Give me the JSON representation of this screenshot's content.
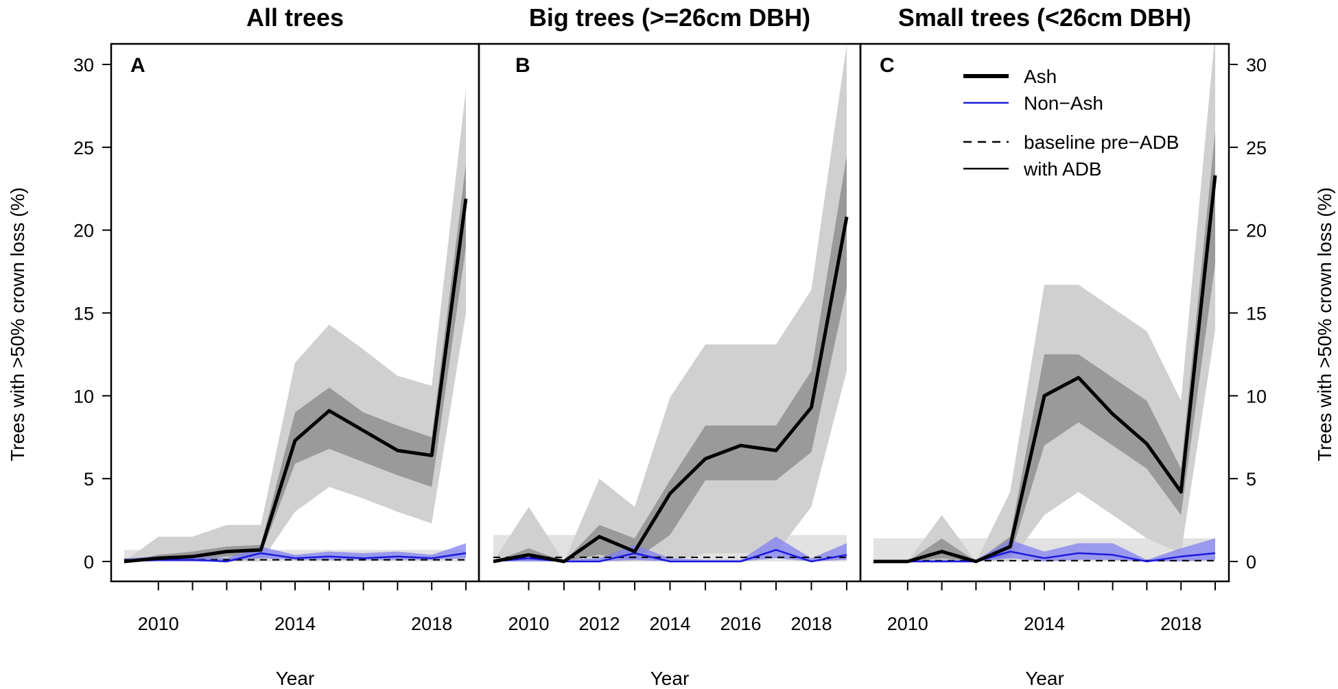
{
  "figure": {
    "xlabel": "Year",
    "ylabel": "Trees with >50% crown loss (%)",
    "colors": {
      "ash": "#000000",
      "nonash": "#1a1adc",
      "ci_outer": "#d0d0d0",
      "ci_inner": "#9a9a9a",
      "baseline_band": "#e2e2e2",
      "nonash_band": "#8080f0"
    }
  },
  "legend": {
    "ash": "Ash",
    "nonash": "Non−Ash",
    "baseline": "baseline pre−ADB",
    "with_adb": "with ADB"
  },
  "chart_data": [
    {
      "type": "line",
      "panel": "A",
      "title": "All trees",
      "xlabel": "Year",
      "ylabel": "Trees with >50% crown loss (%)",
      "xlim": [
        2009,
        2019
      ],
      "ylim": [
        0,
        30
      ],
      "x": [
        2009,
        2010,
        2011,
        2012,
        2013,
        2014,
        2015,
        2016,
        2017,
        2018,
        2019
      ],
      "xticks": [
        2010,
        2014,
        2018
      ],
      "yticks": [
        0,
        5,
        10,
        15,
        20,
        25,
        30
      ],
      "series": [
        {
          "name": "Ash",
          "values": [
            0,
            0.2,
            0.3,
            0.6,
            0.7,
            7.3,
            9.1,
            7.9,
            6.7,
            6.4,
            21.9
          ],
          "ci_outer_lo": [
            0,
            0,
            0,
            0,
            0,
            3.0,
            4.5,
            3.8,
            3.0,
            2.3,
            15.0
          ],
          "ci_outer_hi": [
            0,
            1.5,
            1.5,
            2.2,
            2.2,
            12.0,
            14.3,
            12.8,
            11.2,
            10.6,
            28.5
          ],
          "ci_inner_lo": [
            0,
            0.1,
            0.1,
            0.3,
            0.4,
            5.9,
            6.8,
            6.0,
            5.2,
            4.5,
            19.0
          ],
          "ci_inner_hi": [
            0,
            0.4,
            0.6,
            0.9,
            1.0,
            9.0,
            10.5,
            9.0,
            8.2,
            7.5,
            24.0
          ]
        },
        {
          "name": "Non-Ash",
          "values": [
            0,
            0.1,
            0.1,
            0,
            0.5,
            0.2,
            0.3,
            0.2,
            0.3,
            0.2,
            0.5
          ],
          "band_lo": [
            0,
            0,
            0,
            0,
            0.2,
            0.1,
            0.1,
            0.1,
            0.1,
            0.1,
            0.2
          ],
          "band_hi": [
            0.2,
            0.3,
            0.3,
            0.2,
            0.9,
            0.4,
            0.6,
            0.5,
            0.6,
            0.4,
            1.1
          ]
        }
      ],
      "baseline": {
        "value": 0.1,
        "lo": 0,
        "hi": 0.7
      }
    },
    {
      "type": "line",
      "panel": "B",
      "title": "Big trees (>=26cm DBH)",
      "xlabel": "Year",
      "ylabel": "Trees with >50% crown loss (%)",
      "xlim": [
        2009,
        2019
      ],
      "ylim": [
        0,
        30
      ],
      "x": [
        2009,
        2010,
        2011,
        2012,
        2013,
        2014,
        2015,
        2016,
        2017,
        2018,
        2019
      ],
      "xticks": [
        2010,
        2012,
        2014,
        2016,
        2018
      ],
      "yticks": [
        0,
        5,
        10,
        15,
        20,
        25,
        30
      ],
      "series": [
        {
          "name": "Ash",
          "values": [
            0,
            0.4,
            0,
            1.5,
            0.6,
            4.1,
            6.2,
            7.0,
            6.7,
            9.3,
            20.8
          ],
          "ci_outer_lo": [
            0,
            0,
            0,
            0,
            0,
            0,
            0.5,
            0.5,
            0.5,
            3.3,
            11.5
          ],
          "ci_outer_hi": [
            0,
            3.3,
            0,
            5.0,
            3.3,
            9.9,
            13.1,
            13.1,
            13.1,
            16.4,
            31.2
          ],
          "ci_inner_lo": [
            0,
            0.1,
            0,
            0.4,
            0.1,
            1.6,
            4.9,
            4.9,
            4.9,
            6.6,
            16.5
          ],
          "ci_inner_hi": [
            0,
            0.8,
            0,
            2.2,
            1.4,
            4.9,
            8.2,
            8.2,
            8.2,
            11.5,
            24.5
          ]
        },
        {
          "name": "Non-Ash",
          "values": [
            0,
            0.2,
            0,
            0,
            0.5,
            0,
            0,
            0,
            0.7,
            0,
            0.4
          ],
          "band_lo": [
            0,
            0,
            0,
            0,
            0.1,
            0,
            0,
            0,
            0.2,
            0,
            0.1
          ],
          "band_hi": [
            0.1,
            0.4,
            0.1,
            0.2,
            1.0,
            0.2,
            0.1,
            0.1,
            1.5,
            0.2,
            1.1
          ]
        }
      ],
      "baseline": {
        "value": 0.25,
        "lo": 0,
        "hi": 1.6
      }
    },
    {
      "type": "line",
      "panel": "C",
      "title": "Small trees (<26cm DBH)",
      "xlabel": "Year",
      "ylabel": "Trees with >50% crown loss (%)",
      "xlim": [
        2009,
        2019
      ],
      "ylim": [
        0,
        30
      ],
      "x": [
        2009,
        2010,
        2011,
        2012,
        2013,
        2014,
        2015,
        2016,
        2017,
        2018,
        2019
      ],
      "xticks": [
        2010,
        2014,
        2018
      ],
      "yticks": [
        0,
        5,
        10,
        15,
        20,
        25,
        30
      ],
      "series": [
        {
          "name": "Ash",
          "values": [
            0,
            0,
            0.6,
            0,
            0.9,
            10.0,
            11.1,
            8.9,
            7.1,
            4.2,
            23.3
          ],
          "ci_outer_lo": [
            0,
            0,
            0,
            0,
            0,
            2.8,
            4.2,
            2.8,
            1.4,
            0.5,
            14.0
          ],
          "ci_outer_hi": [
            0,
            0,
            2.8,
            0,
            4.2,
            16.7,
            16.7,
            15.3,
            13.9,
            9.7,
            31.9
          ],
          "ci_inner_lo": [
            0,
            0,
            0.2,
            0,
            0.3,
            7.0,
            8.4,
            7.0,
            5.6,
            2.8,
            18.0
          ],
          "ci_inner_hi": [
            0,
            0,
            1.4,
            0,
            1.5,
            12.5,
            12.5,
            11.1,
            9.7,
            5.6,
            26.0
          ]
        },
        {
          "name": "Non-Ash",
          "values": [
            0,
            0,
            0,
            0,
            0.6,
            0.2,
            0.5,
            0.4,
            0,
            0.3,
            0.5
          ],
          "band_lo": [
            0,
            0,
            0,
            0,
            0.2,
            0,
            0.1,
            0.1,
            0,
            0,
            0.1
          ],
          "band_hi": [
            0.1,
            0.1,
            0.1,
            0.1,
            1.3,
            0.6,
            1.1,
            1.1,
            0.1,
            0.8,
            1.4
          ]
        }
      ],
      "baseline": {
        "value": 0.05,
        "lo": 0,
        "hi": 1.4
      }
    }
  ]
}
